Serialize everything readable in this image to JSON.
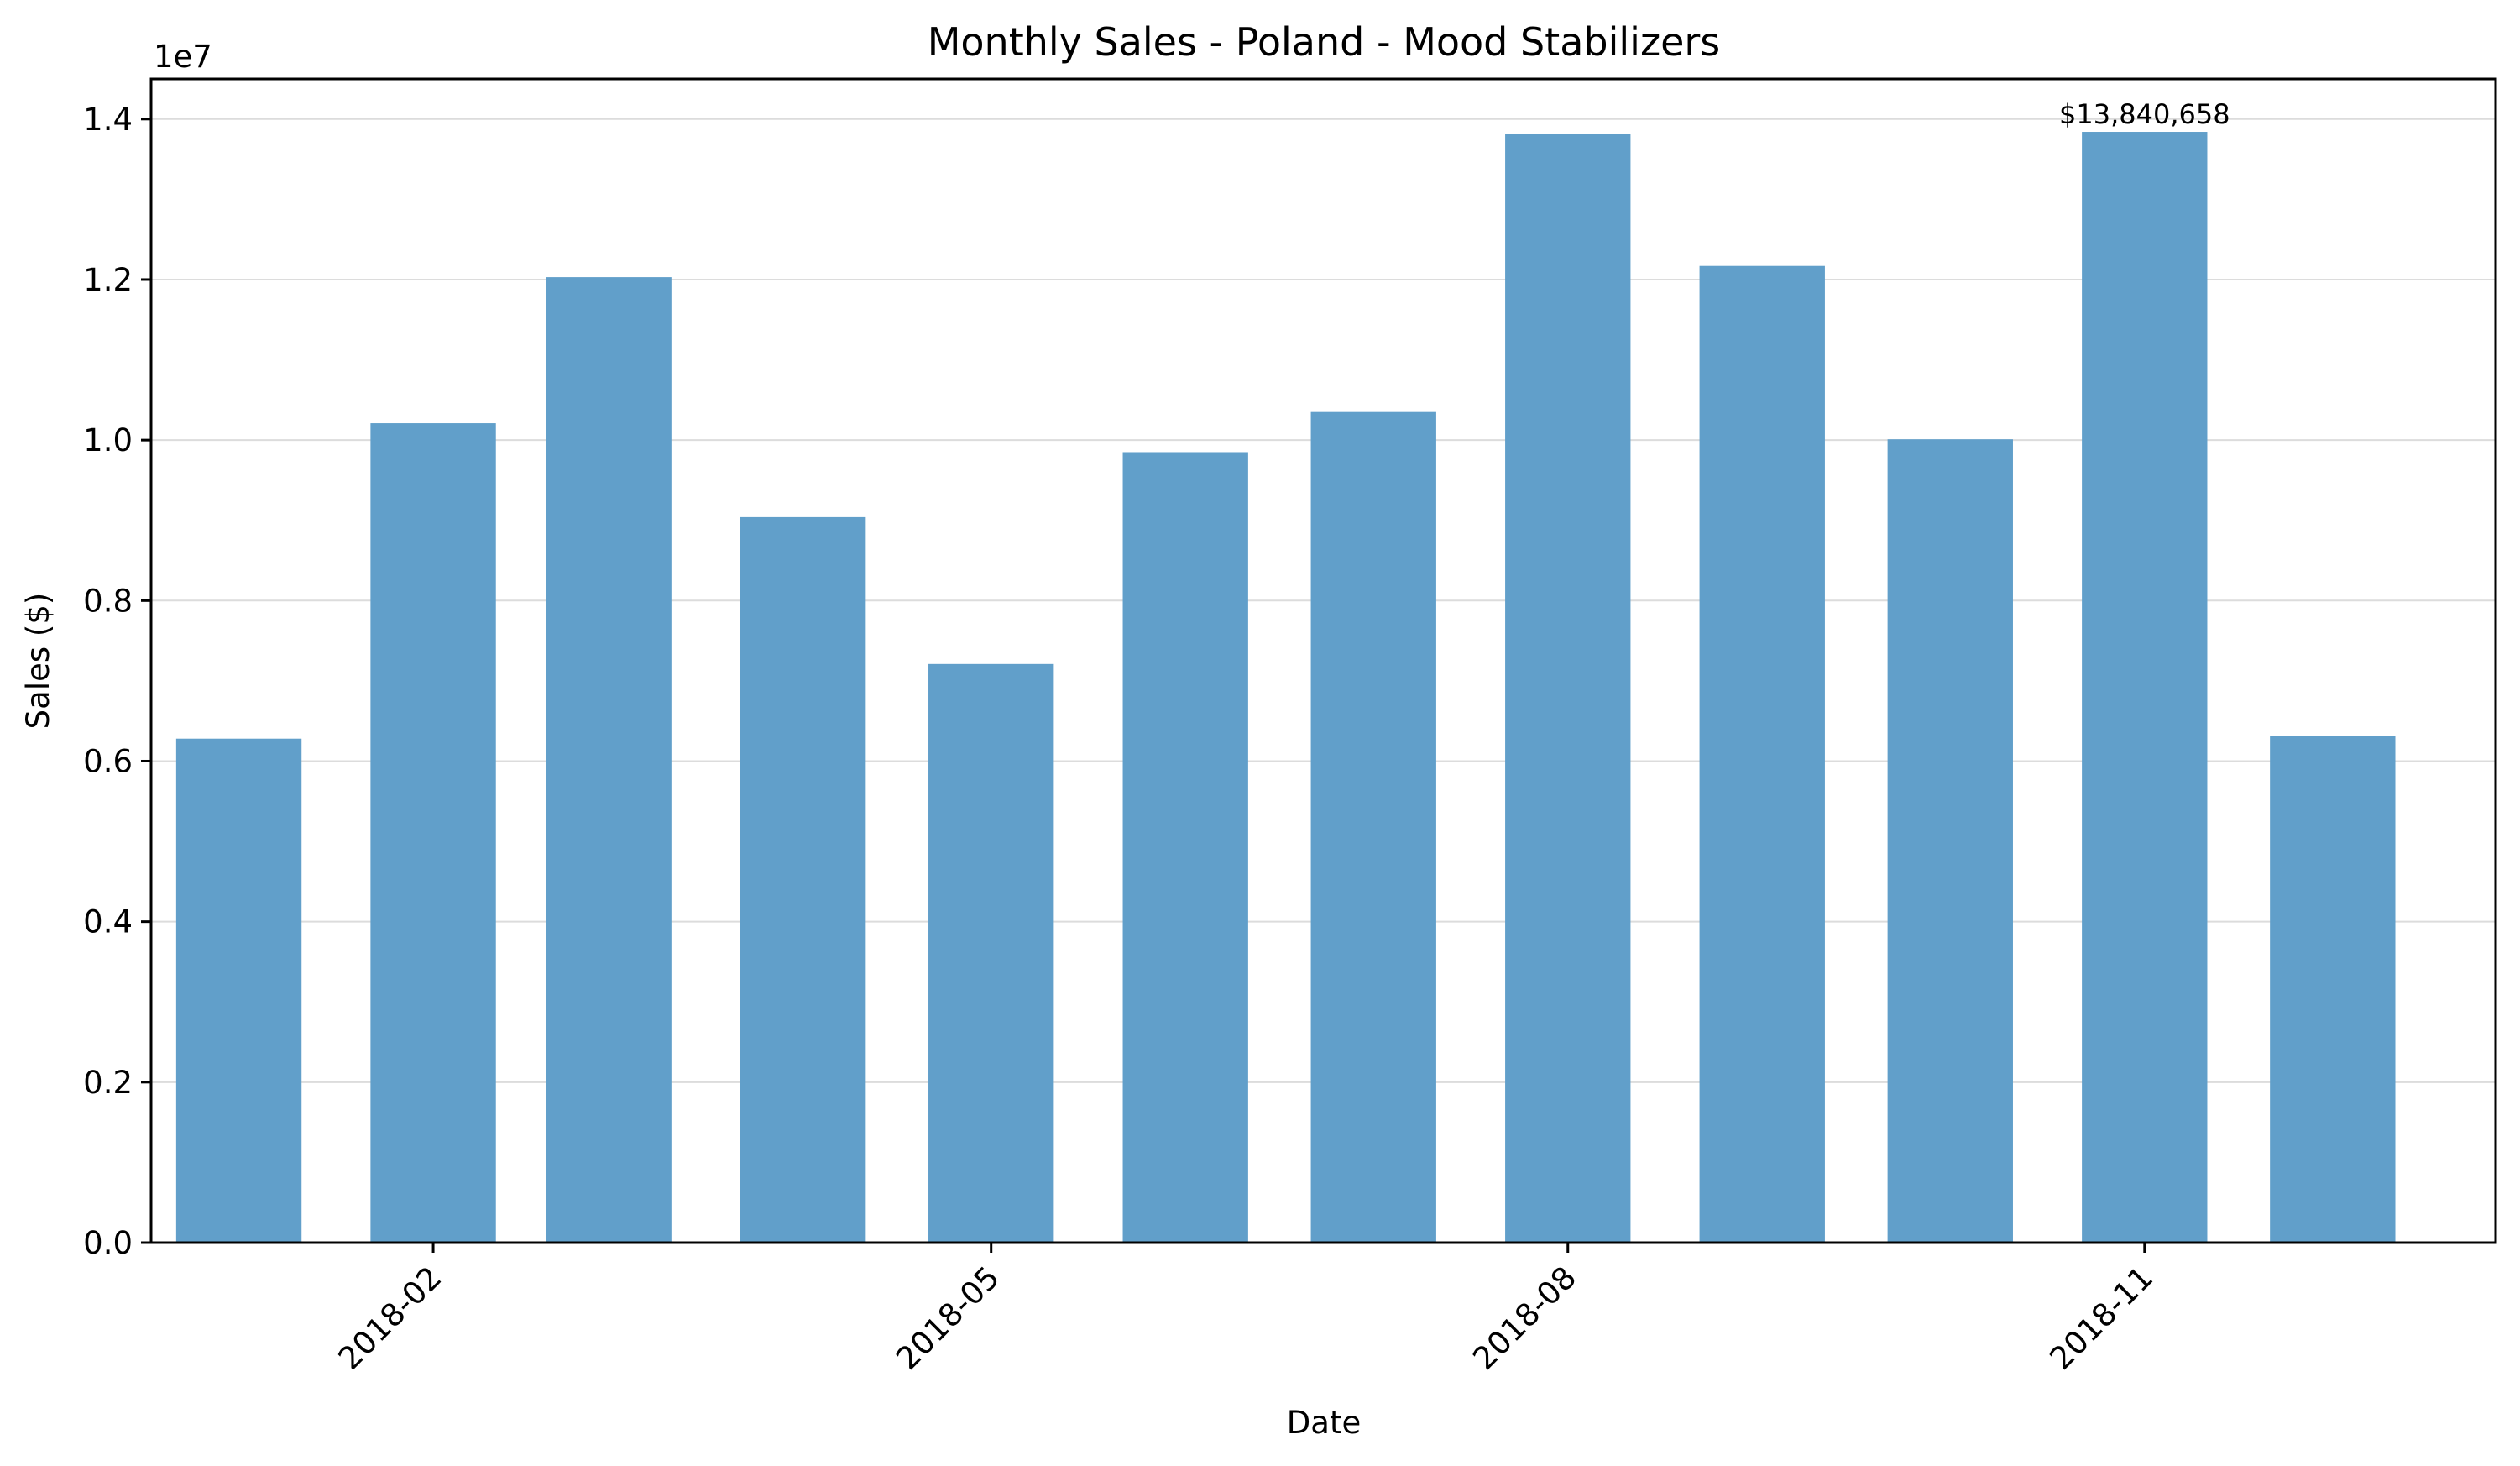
{
  "chart_data": {
    "type": "bar",
    "title": "Monthly Sales - Poland - Mood Stabilizers",
    "xlabel": "Date",
    "ylabel": "Sales ($)",
    "y_offset_label": "1e7",
    "y_scale": 10000000,
    "ylim": [
      0,
      14500000
    ],
    "yticks": [
      0,
      2000000,
      4000000,
      6000000,
      8000000,
      10000000,
      12000000,
      14000000
    ],
    "ytick_labels": [
      "0.0",
      "0.2",
      "0.4",
      "0.6",
      "0.8",
      "1.0",
      "1.2",
      "1.4"
    ],
    "xlim": [
      "2017-12-18",
      "2018-12-27"
    ],
    "xticks": [
      "2018-02-01",
      "2018-05-01",
      "2018-08-01",
      "2018-11-01"
    ],
    "xtick_labels": [
      "2018-02",
      "2018-05",
      "2018-08",
      "2018-11"
    ],
    "bar_width_days": 20,
    "dates": [
      "2018-01-01",
      "2018-02-01",
      "2018-03-01",
      "2018-04-01",
      "2018-05-01",
      "2018-06-01",
      "2018-07-01",
      "2018-08-01",
      "2018-09-01",
      "2018-10-01",
      "2018-11-01",
      "2018-12-01"
    ],
    "values": [
      6280000,
      10210000,
      12030000,
      9040000,
      7210000,
      9850000,
      10350000,
      13820000,
      12170000,
      10010000,
      13840658,
      6310000
    ],
    "bar_color": "#619fca",
    "grid": "horizontal",
    "annotations": [
      {
        "date": "2018-11-01",
        "text": "$13,840,658",
        "value": 13840658
      }
    ]
  }
}
